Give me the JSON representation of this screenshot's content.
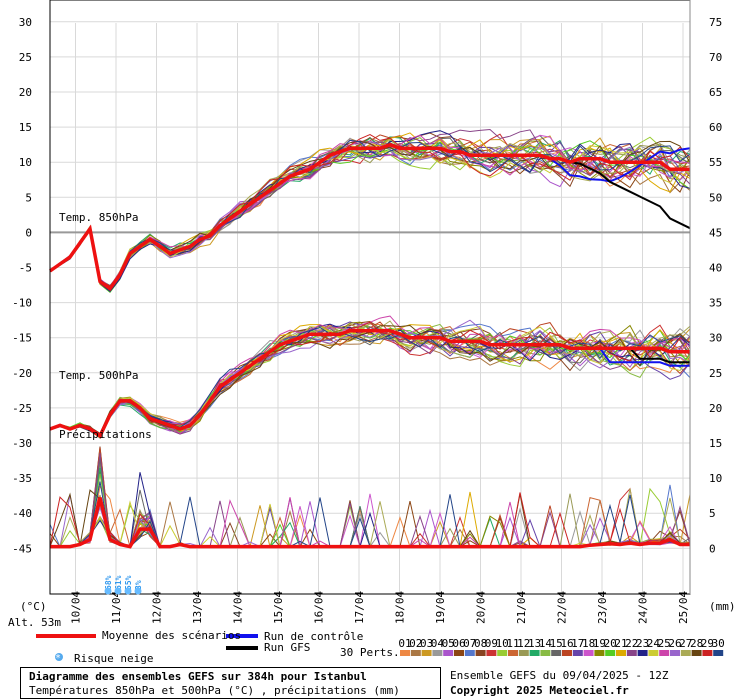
{
  "chart_data": {
    "type": "line",
    "title": "Diagramme des ensembles GEFS sur 384h pour Istanbul",
    "subtitle": "Températures 850hPa et 500hPa (°C) , précipitations (mm)",
    "left_axis": {
      "label": "(°C)",
      "ticks": [
        30,
        25,
        20,
        15,
        10,
        5,
        0,
        -5,
        -10,
        -15,
        -20,
        -25,
        -30,
        -35,
        -40,
        -45
      ]
    },
    "right_axis": {
      "label": "(mm)",
      "ticks": [
        75,
        70,
        65,
        60,
        55,
        50,
        45,
        40,
        35,
        30,
        25,
        20,
        15,
        10,
        5,
        0
      ]
    },
    "x_ticks": [
      "10/04",
      "11/04",
      "12/04",
      "13/04",
      "14/04",
      "15/04",
      "16/04",
      "17/04",
      "18/04",
      "19/04",
      "20/04",
      "21/04",
      "22/04",
      "23/04",
      "24/04",
      "25/04"
    ],
    "panel_labels": {
      "t850": "Temp. 850hPa",
      "t500": "Temp. 500hPa",
      "precip": "Précipitations"
    },
    "altitude": "Alt. 53m",
    "snow_risk": [
      "68%",
      "61%",
      "55%",
      "3%"
    ],
    "series": [
      {
        "name": "Moyenne des scénarios (850hPa)",
        "color": "#ee1111",
        "x": [
          0,
          6,
          12,
          18,
          24,
          30,
          36,
          42,
          48,
          54,
          60,
          66,
          72,
          78,
          84,
          90,
          96,
          102,
          108,
          114,
          120,
          126,
          132,
          138,
          144,
          150,
          156,
          162,
          168,
          174,
          180,
          186,
          192,
          198,
          204,
          210,
          216,
          222,
          228,
          234,
          240,
          246,
          252,
          258,
          264,
          270,
          276,
          282,
          288,
          294,
          300,
          306,
          312,
          318,
          324,
          330,
          336,
          342,
          348,
          354,
          360,
          366,
          372,
          378,
          384
        ],
        "values": [
          -5.5,
          -4.5,
          -3.5,
          -1.5,
          0.5,
          -7,
          -8,
          -6,
          -3,
          -2,
          -1,
          -2,
          -3,
          -2.5,
          -2,
          -1,
          -0.5,
          1,
          2,
          3,
          4,
          5,
          6,
          7,
          8,
          8.5,
          9,
          10,
          11,
          11.5,
          12,
          12,
          12,
          12,
          12.5,
          12,
          12,
          12,
          12,
          12,
          11.5,
          11.5,
          11,
          11,
          11,
          11,
          11,
          11,
          11,
          11,
          10.5,
          10.5,
          10,
          10.5,
          10.5,
          10.5,
          10,
          10,
          10,
          10,
          10,
          10,
          9,
          9,
          9
        ]
      },
      {
        "name": "Moyenne des scénarios (500hPa)",
        "color": "#ee1111",
        "x": [
          0,
          6,
          12,
          18,
          24,
          30,
          36,
          42,
          48,
          54,
          60,
          66,
          72,
          78,
          84,
          90,
          96,
          102,
          108,
          114,
          120,
          126,
          132,
          138,
          144,
          150,
          156,
          162,
          168,
          174,
          180,
          186,
          192,
          198,
          204,
          210,
          216,
          222,
          228,
          234,
          240,
          246,
          252,
          258,
          264,
          270,
          276,
          282,
          288,
          294,
          300,
          306,
          312,
          318,
          324,
          330,
          336,
          342,
          348,
          354,
          360,
          366,
          372,
          378,
          384
        ],
        "values": [
          -28,
          -27.5,
          -28,
          -27.5,
          -28,
          -29,
          -26,
          -24,
          -24,
          -25,
          -26.5,
          -27,
          -27.5,
          -28,
          -27.5,
          -26,
          -24,
          -22,
          -21,
          -20,
          -19,
          -18,
          -17,
          -16,
          -15.5,
          -15,
          -14.5,
          -14.5,
          -14.5,
          -14.5,
          -14,
          -14,
          -14,
          -14,
          -14,
          -14.5,
          -15,
          -15,
          -15,
          -15,
          -15.5,
          -15.5,
          -15.5,
          -15.5,
          -16,
          -16,
          -16,
          -16,
          -16,
          -16,
          -16,
          -16,
          -16.5,
          -16.5,
          -16.5,
          -16.5,
          -16.5,
          -16.5,
          -16.5,
          -16.5,
          -16.5,
          -16.5,
          -17,
          -17,
          -17
        ]
      },
      {
        "name": "Moyenne des scénarios (précip.)",
        "color": "#ee1111",
        "x": [
          0,
          6,
          12,
          18,
          24,
          30,
          36,
          42,
          48,
          54,
          60,
          66,
          72,
          78,
          84,
          90,
          96,
          102,
          108,
          114,
          120,
          126,
          132,
          138,
          144,
          150,
          156,
          162,
          168,
          174,
          180,
          186,
          192,
          198,
          204,
          210,
          216,
          222,
          228,
          234,
          240,
          246,
          252,
          258,
          264,
          270,
          276,
          282,
          288,
          294,
          300,
          306,
          312,
          318,
          324,
          330,
          336,
          342,
          348,
          354,
          360,
          366,
          372,
          378,
          384
        ],
        "values": [
          0,
          0,
          0,
          0.3,
          1,
          7,
          1,
          0.3,
          0,
          2.5,
          2.5,
          0,
          0,
          0.3,
          0,
          0,
          0,
          0,
          0,
          0,
          0,
          0,
          0,
          0,
          0,
          0,
          0,
          0,
          0,
          0,
          0,
          0,
          0,
          0,
          0,
          0,
          0,
          0,
          0,
          0,
          0,
          0,
          0,
          0,
          0,
          0,
          0,
          0,
          0,
          0,
          0,
          0,
          0,
          0,
          0.2,
          0.3,
          0.4,
          0.3,
          0.5,
          0.3,
          0.5,
          0.5,
          1,
          0.3,
          0.3
        ]
      }
    ],
    "legend": {
      "mean": "Moyenne des scénarios",
      "control": "Run de contrôle",
      "gfs": "Run GFS",
      "snow": "Risque neige",
      "perts": "30 Perts.",
      "pert_labels": [
        "01",
        "02",
        "03",
        "04",
        "05",
        "06",
        "07",
        "08",
        "09",
        "10",
        "11",
        "12",
        "13",
        "14",
        "15",
        "16",
        "17",
        "18",
        "19",
        "20",
        "21",
        "22",
        "23",
        "24",
        "25",
        "26",
        "27",
        "28",
        "29",
        "30"
      ],
      "pert_colors": [
        "#ee8844",
        "#aa7744",
        "#cc9922",
        "#999999",
        "#aa55cc",
        "#8b4513",
        "#5577cc",
        "#884422",
        "#cc3333",
        "#99cc33",
        "#cc6633",
        "#999955",
        "#22aa66",
        "#88bb44",
        "#666666",
        "#bb4422",
        "#6644aa",
        "#cc55cc",
        "#888800",
        "#55cc22",
        "#ddaa00",
        "#884488",
        "#222288",
        "#cccc33",
        "#cc44aa",
        "#9966cc",
        "#aaaa55",
        "#664411",
        "#cc2222",
        "#224488"
      ]
    },
    "footer": {
      "ensemble": "Ensemble GEFS du 09/04/2025 - 12Z",
      "copyright": "Copyright 2025 Meteociel.fr"
    }
  }
}
